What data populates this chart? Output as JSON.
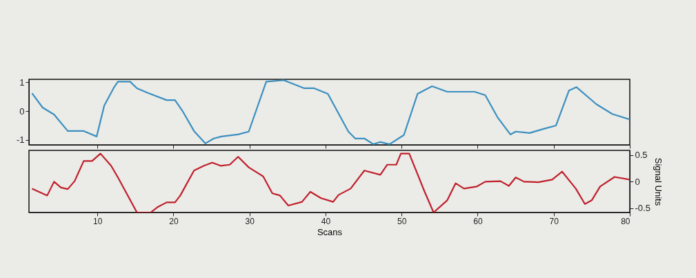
{
  "chart_data": [
    {
      "type": "line",
      "xlim": [
        1,
        80
      ],
      "xticks": [
        10,
        20,
        30,
        40,
        50,
        60,
        70,
        80
      ],
      "ylim": [
        -1.17,
        1.1
      ],
      "yticks": [
        -1,
        0,
        1
      ],
      "tick_labels": "y",
      "grid": false,
      "series": [
        {
          "color": "#3a8fc0",
          "x": [
            1.4,
            2.8,
            4.3,
            6.1,
            8.2,
            8.8,
            9.9,
            10.9,
            12.2,
            12.7,
            14.3,
            15.2,
            16.7,
            19.1,
            20.2,
            21.2,
            22.7,
            24.2,
            25.3,
            26.3,
            28.5,
            29.9,
            32.2,
            34.5,
            37.2,
            38.5,
            40.3,
            43,
            43.9,
            45.1,
            46.3,
            47.2,
            48.4,
            50.3,
            52.1,
            54,
            56,
            57.8,
            59.6,
            61,
            62.6,
            64.3,
            65,
            66.8,
            68.9,
            70.3,
            72,
            73,
            75.6,
            77.7,
            80
          ],
          "values": [
            0.62,
            0.12,
            -0.12,
            -0.69,
            -0.69,
            -0.76,
            -0.88,
            0.19,
            0.83,
            1.02,
            1.02,
            0.79,
            0.62,
            0.38,
            0.38,
            0,
            -0.69,
            -1.12,
            -0.95,
            -0.88,
            -0.81,
            -0.71,
            1.02,
            1.07,
            0.79,
            0.79,
            0.6,
            -0.71,
            -0.95,
            -0.95,
            -1.15,
            -1.07,
            -1.15,
            -0.83,
            0.6,
            0.86,
            0.67,
            0.67,
            0.67,
            0.55,
            -0.21,
            -0.81,
            -0.71,
            -0.76,
            -0.6,
            -0.5,
            0.71,
            0.83,
            0.24,
            -0.1,
            -0.29
          ]
        }
      ]
    },
    {
      "type": "line",
      "xlim": [
        1,
        80
      ],
      "xticks": [
        10,
        20,
        30,
        40,
        50,
        60,
        70,
        80
      ],
      "xlabel": "Scans",
      "y2lim": [
        -0.58,
        0.59
      ],
      "y2ticks": [
        -0.5,
        0,
        0.5
      ],
      "y2label": "Signal Units",
      "grid": false,
      "series": [
        {
          "color": "#c01f2b",
          "axis": "y2",
          "x": [
            1.4,
            3.4,
            4.3,
            5.2,
            6.1,
            7,
            8.2,
            9.3,
            10.4,
            11.8,
            12.7,
            15.2,
            17,
            17.9,
            19.1,
            20.2,
            20.9,
            22.7,
            24,
            25.1,
            26.2,
            27.4,
            28.5,
            29.9,
            31.8,
            33,
            34,
            35.1,
            36.9,
            38,
            39.4,
            41,
            41.7,
            43.3,
            45.1,
            47.2,
            48.1,
            49.3,
            49.9,
            51,
            53,
            54.2,
            56,
            57.1,
            58.2,
            59.9,
            61,
            63,
            64.1,
            65,
            66.1,
            68,
            69.8,
            71.1,
            72.9,
            74.1,
            75,
            76.1,
            78,
            80
          ],
          "values": [
            -0.13,
            -0.26,
            0,
            -0.11,
            -0.14,
            0.01,
            0.39,
            0.39,
            0.53,
            0.3,
            0.08,
            -0.58,
            -0.58,
            -0.48,
            -0.39,
            -0.39,
            -0.26,
            0.21,
            0.3,
            0.36,
            0.3,
            0.32,
            0.47,
            0.27,
            0.1,
            -0.22,
            -0.26,
            -0.45,
            -0.38,
            -0.19,
            -0.31,
            -0.38,
            -0.25,
            -0.13,
            0.21,
            0.13,
            0.32,
            0.32,
            0.53,
            0.53,
            -0.18,
            -0.58,
            -0.35,
            -0.03,
            -0.13,
            -0.09,
            0,
            0.01,
            -0.08,
            0.08,
            0,
            -0.01,
            0.04,
            0.19,
            -0.13,
            -0.42,
            -0.35,
            -0.09,
            0.09,
            0.04
          ]
        }
      ]
    }
  ]
}
